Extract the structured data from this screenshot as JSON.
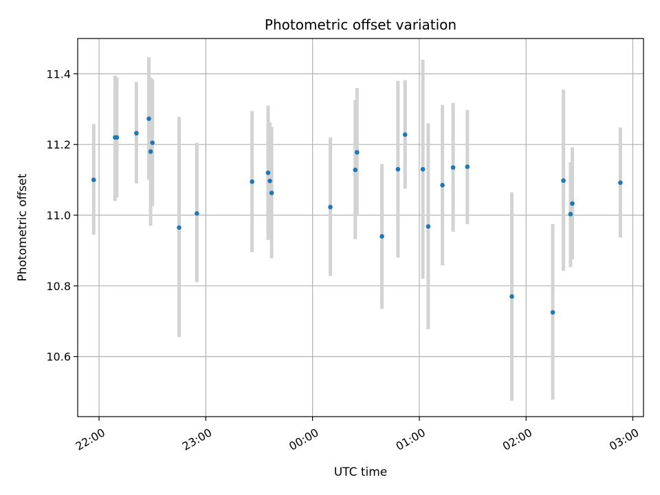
{
  "chart_data": {
    "type": "scatter",
    "title": "Photometric offset variation",
    "xlabel": "UTC time",
    "ylabel": "Photometric offset",
    "x_axis": {
      "kind": "time",
      "range": [
        "21:48",
        "03:06"
      ]
    },
    "ylim": [
      10.43,
      11.5
    ],
    "x_ticks": [
      "22:00",
      "23:00",
      "00:00",
      "01:00",
      "02:00",
      "03:00"
    ],
    "y_ticks": [
      10.6,
      10.8,
      11.0,
      11.2,
      11.4
    ],
    "grid": true,
    "colors": {
      "marker": "#1f77b4",
      "errorbar": "#d3d3d3",
      "grid": "#b0b0b0"
    },
    "series": [
      {
        "points": [
          {
            "t": "21:57",
            "y": 11.1,
            "lo": 10.945,
            "hi": 11.258
          },
          {
            "t": "22:09",
            "y": 11.22,
            "lo": 11.04,
            "hi": 11.395
          },
          {
            "t": "22:10",
            "y": 11.22,
            "lo": 11.05,
            "hi": 11.39
          },
          {
            "t": "22:21",
            "y": 11.232,
            "lo": 11.09,
            "hi": 11.377
          },
          {
            "t": "22:28",
            "y": 11.273,
            "lo": 11.1,
            "hi": 11.447
          },
          {
            "t": "22:29",
            "y": 11.18,
            "lo": 10.97,
            "hi": 11.39
          },
          {
            "t": "22:30",
            "y": 11.205,
            "lo": 11.025,
            "hi": 11.385
          },
          {
            "t": "22:45",
            "y": 10.965,
            "lo": 10.655,
            "hi": 11.278
          },
          {
            "t": "22:55",
            "y": 11.005,
            "lo": 10.81,
            "hi": 11.205
          },
          {
            "t": "23:26",
            "y": 11.095,
            "lo": 10.895,
            "hi": 11.295
          },
          {
            "t": "23:35",
            "y": 11.12,
            "lo": 10.93,
            "hi": 11.31
          },
          {
            "t": "23:36",
            "y": 11.097,
            "lo": 10.935,
            "hi": 11.263
          },
          {
            "t": "23:37",
            "y": 11.063,
            "lo": 10.878,
            "hi": 11.25
          },
          {
            "t": "00:10",
            "y": 11.023,
            "lo": 10.828,
            "hi": 11.22
          },
          {
            "t": "00:24",
            "y": 11.128,
            "lo": 10.932,
            "hi": 11.326
          },
          {
            "t": "00:25",
            "y": 11.178,
            "lo": 11.0,
            "hi": 11.36
          },
          {
            "t": "00:39",
            "y": 10.94,
            "lo": 10.735,
            "hi": 11.145
          },
          {
            "t": "00:48",
            "y": 11.13,
            "lo": 10.88,
            "hi": 11.38
          },
          {
            "t": "00:52",
            "y": 11.228,
            "lo": 11.075,
            "hi": 11.382
          },
          {
            "t": "01:02",
            "y": 11.13,
            "lo": 10.82,
            "hi": 11.44
          },
          {
            "t": "01:05",
            "y": 10.968,
            "lo": 10.677,
            "hi": 11.26
          },
          {
            "t": "01:13",
            "y": 11.085,
            "lo": 10.858,
            "hi": 11.312
          },
          {
            "t": "01:19",
            "y": 11.135,
            "lo": 10.953,
            "hi": 11.318
          },
          {
            "t": "01:27",
            "y": 11.137,
            "lo": 10.975,
            "hi": 11.298
          },
          {
            "t": "01:52",
            "y": 10.77,
            "lo": 10.475,
            "hi": 11.065
          },
          {
            "t": "02:15",
            "y": 10.725,
            "lo": 10.478,
            "hi": 10.975
          },
          {
            "t": "02:21",
            "y": 11.098,
            "lo": 10.843,
            "hi": 11.355
          },
          {
            "t": "02:25",
            "y": 11.003,
            "lo": 10.853,
            "hi": 11.15
          },
          {
            "t": "02:26",
            "y": 11.033,
            "lo": 10.875,
            "hi": 11.192
          },
          {
            "t": "02:53",
            "y": 11.092,
            "lo": 10.937,
            "hi": 11.248
          }
        ]
      }
    ]
  }
}
